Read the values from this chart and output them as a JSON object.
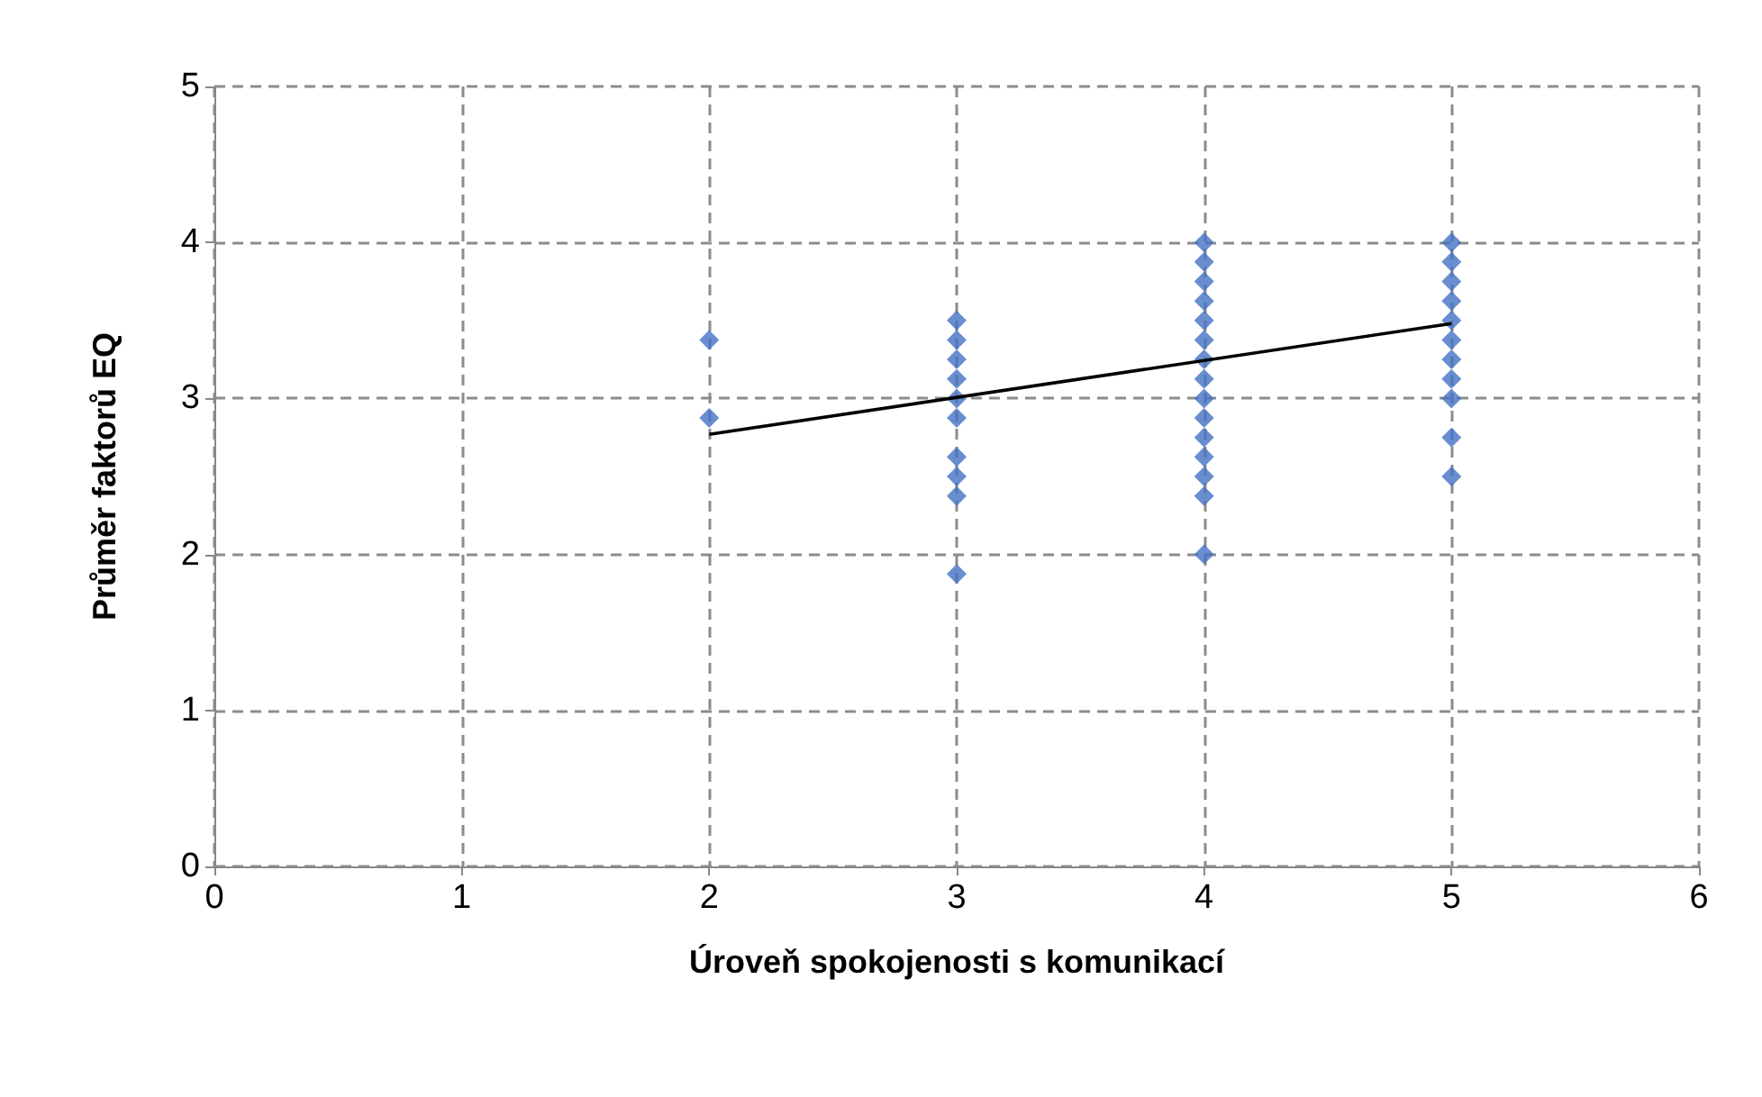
{
  "chart_data": {
    "type": "scatter",
    "xlabel": "Úroveň spokojenosti s komunikací",
    "ylabel": "Průměr faktorů EQ",
    "xlim": [
      0,
      6
    ],
    "xticks": [
      0,
      1,
      2,
      3,
      4,
      5,
      6
    ],
    "ylim": [
      0,
      5
    ],
    "yticks": [
      0,
      1,
      2,
      3,
      4,
      5
    ],
    "grid": true,
    "marker": "diamond",
    "series": [
      {
        "color": "#4472c4",
        "x": [
          2,
          2,
          3,
          3,
          3,
          3,
          3,
          3,
          3,
          3,
          3,
          3,
          4,
          4,
          4,
          4,
          4,
          4,
          4,
          4,
          4,
          4,
          4,
          4,
          4,
          4,
          4,
          5,
          5,
          5,
          5,
          5,
          5,
          5,
          5,
          5,
          5,
          5
        ],
        "values": [
          3.375,
          2.875,
          3.5,
          3.375,
          3.25,
          3.125,
          3.0,
          2.875,
          2.625,
          2.5,
          2.375,
          1.875,
          4.0,
          3.875,
          3.75,
          3.625,
          3.5,
          3.375,
          3.25,
          3.125,
          3.0,
          2.875,
          2.75,
          2.625,
          2.5,
          2.375,
          2.0,
          4.0,
          3.875,
          3.75,
          3.625,
          3.5,
          3.375,
          3.25,
          3.125,
          3.0,
          2.75,
          2.5
        ]
      },
      {
        "type": "line",
        "color": "#000000",
        "marker": "none",
        "line_style": "solid",
        "x": [
          2,
          5
        ],
        "values": [
          2.77,
          3.48
        ]
      }
    ]
  }
}
